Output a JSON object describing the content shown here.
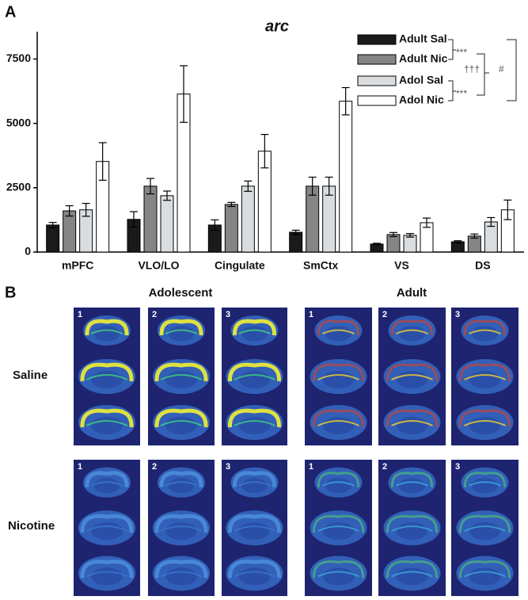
{
  "chart_data": {
    "type": "bar",
    "panel_label": "A",
    "title": "arc",
    "categories": [
      "mPFC",
      "VLO/LO",
      "Cingulate",
      "SmCtx",
      "VS",
      "DS"
    ],
    "series": [
      {
        "name": "Adult Sal",
        "color": "#1a1a1a",
        "values": [
          1050,
          1270,
          1050,
          770,
          310,
          400
        ],
        "errors": [
          100,
          300,
          200,
          80,
          30,
          40
        ]
      },
      {
        "name": "Adult Nic",
        "color": "#858585",
        "values": [
          1600,
          2560,
          1850,
          2560,
          680,
          620
        ],
        "errors": [
          200,
          300,
          80,
          350,
          80,
          80
        ]
      },
      {
        "name": "Adol Sal",
        "color": "#d9dde0",
        "values": [
          1640,
          2190,
          2560,
          2560,
          650,
          1170
        ],
        "errors": [
          250,
          180,
          200,
          350,
          70,
          170
        ]
      },
      {
        "name": "Adol Nic",
        "color": "#ffffff",
        "values": [
          3520,
          6140,
          3920,
          5860,
          1140,
          1640
        ],
        "errors": [
          730,
          1100,
          650,
          530,
          180,
          380
        ]
      }
    ],
    "ylim": [
      0,
      8500
    ],
    "yticks": [
      0,
      2500,
      5000,
      7500
    ],
    "legend": "upper right",
    "annotations": [
      "***",
      "***",
      "†††",
      "#"
    ]
  },
  "panel_b": {
    "label": "B",
    "columns": [
      "Adolescent",
      "Adult"
    ],
    "rows": [
      "Saline",
      "Nicotine"
    ],
    "image_numbers": [
      "1",
      "2",
      "3"
    ]
  }
}
